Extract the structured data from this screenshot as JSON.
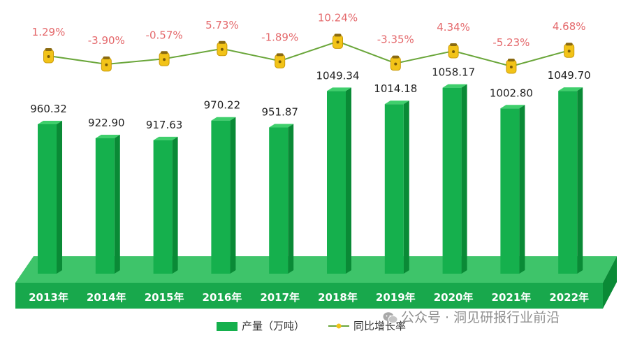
{
  "chart_data": {
    "type": "bar",
    "categories": [
      "2013年",
      "2014年",
      "2015年",
      "2016年",
      "2017年",
      "2018年",
      "2019年",
      "2020年",
      "2021年",
      "2022年"
    ],
    "series": [
      {
        "name": "产量（万吨）",
        "type": "bar",
        "values": [
          960.32,
          922.9,
          917.63,
          970.22,
          951.87,
          1049.34,
          1014.18,
          1058.17,
          1002.8,
          1049.7
        ],
        "labels": [
          "960.32",
          "922.90",
          "917.63",
          "970.22",
          "951.87",
          "1049.34",
          "1014.18",
          "1058.17",
          "1002.80",
          "1049.70"
        ]
      },
      {
        "name": "同比增长率",
        "type": "line",
        "values": [
          1.29,
          -3.9,
          -0.57,
          5.73,
          -1.89,
          10.24,
          -3.35,
          4.34,
          -5.23,
          4.68
        ],
        "labels": [
          "1.29%",
          "-3.90%",
          "-0.57%",
          "5.73%",
          "-1.89%",
          "10.24%",
          "-3.35%",
          "4.34%",
          "-5.23%",
          "4.68%"
        ]
      }
    ],
    "legend_position": "bottom",
    "grid": false,
    "colors": {
      "bar_front": "#15b04d",
      "bar_side": "#0a8a36",
      "bar_top": "#3fcf6c",
      "floor": "#18a84c",
      "floor_top": "#3ec46a",
      "line": "#6aa63a",
      "marker": "#f2c318",
      "growth_label": "#e4686b",
      "value_label": "#222222",
      "category_label": "#ffffff"
    }
  },
  "watermark": "公众号 · 洞见研报行业前沿"
}
